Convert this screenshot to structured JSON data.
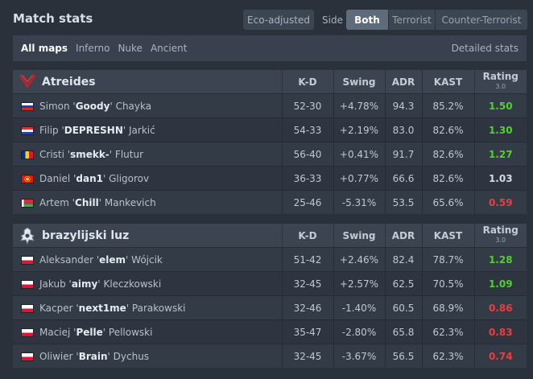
{
  "header": {
    "title": "Match stats",
    "eco_label": "Eco-adjusted",
    "side_label": "Side",
    "side_options": [
      "Both",
      "Terrorist",
      "Counter-Terrorist"
    ],
    "side_selected": "Both"
  },
  "maps": {
    "items": [
      "All maps",
      "Inferno",
      "Nuke",
      "Ancient"
    ],
    "selected": "All maps",
    "detailed_label": "Detailed stats"
  },
  "columns": {
    "kd": "K-D",
    "swing": "Swing",
    "adr": "ADR",
    "kast": "KAST",
    "rating": "Rating",
    "rating_version": "3.0"
  },
  "teams": [
    {
      "name": "Atreides",
      "logo_icon": "atreides-hawk-logo-icon",
      "players": [
        {
          "first": "Simon '",
          "nick": "Goody",
          "last": "' Chayka",
          "flag": "russia",
          "kd": "52-30",
          "swing": "+4.78%",
          "adr": "94.3",
          "kast": "85.2%",
          "rating": "1.50"
        },
        {
          "first": "Filip '",
          "nick": "DEPRESHN",
          "last": "' Jarkić",
          "flag": "croatia",
          "kd": "54-33",
          "swing": "+2.19%",
          "adr": "83.0",
          "kast": "82.6%",
          "rating": "1.30"
        },
        {
          "first": "Cristi '",
          "nick": "smekk-",
          "last": "' Flutur",
          "flag": "romania",
          "kd": "56-40",
          "swing": "+0.41%",
          "adr": "91.7",
          "kast": "82.6%",
          "rating": "1.27"
        },
        {
          "first": "Daniel '",
          "nick": "dan1",
          "last": "' Gligorov",
          "flag": "north-macedonia",
          "kd": "36-33",
          "swing": "+0.77%",
          "adr": "66.6",
          "kast": "82.6%",
          "rating": "1.03"
        },
        {
          "first": "Artem '",
          "nick": "Chill",
          "last": "' Mankevich",
          "flag": "belarus",
          "kd": "25-46",
          "swing": "-5.31%",
          "adr": "53.5",
          "kast": "65.6%",
          "rating": "0.59"
        }
      ]
    },
    {
      "name": "brazylijski luz",
      "logo_icon": "crest-logo-icon",
      "players": [
        {
          "first": "Aleksander '",
          "nick": "elem",
          "last": "' Wójcik",
          "flag": "poland",
          "kd": "51-42",
          "swing": "+2.46%",
          "adr": "82.4",
          "kast": "78.7%",
          "rating": "1.28"
        },
        {
          "first": "Jakub '",
          "nick": "aimy",
          "last": "' Kleczkowski",
          "flag": "poland",
          "kd": "32-45",
          "swing": "+2.57%",
          "adr": "62.5",
          "kast": "70.5%",
          "rating": "1.09"
        },
        {
          "first": "Kacper '",
          "nick": "next1me",
          "last": "' Parakowski",
          "flag": "poland",
          "kd": "32-46",
          "swing": "-1.40%",
          "adr": "60.5",
          "kast": "68.9%",
          "rating": "0.86"
        },
        {
          "first": "Maciej '",
          "nick": "Pelle",
          "last": "' Pellowski",
          "flag": "poland",
          "kd": "35-47",
          "swing": "-2.80%",
          "adr": "65.8",
          "kast": "62.3%",
          "rating": "0.83"
        },
        {
          "first": "Oliwier '",
          "nick": "Brain",
          "last": "' Dychus",
          "flag": "poland",
          "kd": "32-45",
          "swing": "-3.67%",
          "adr": "56.5",
          "kast": "62.3%",
          "rating": "0.74"
        }
      ]
    }
  ]
}
